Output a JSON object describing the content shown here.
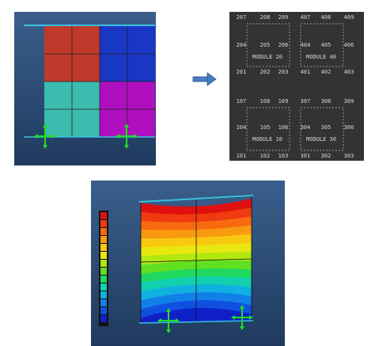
{
  "node_panel": {
    "top_rows": [
      [
        "207",
        "208",
        "209",
        "407",
        "408",
        "409"
      ],
      [
        "204",
        "205",
        "206",
        "404",
        "405",
        "406"
      ],
      [
        "201",
        "202",
        "203",
        "401",
        "402",
        "403"
      ]
    ],
    "top_modules": [
      "MODULE 20",
      "MODULE 40"
    ],
    "bottom_rows": [
      [
        "107",
        "108",
        "109",
        "307",
        "308",
        "309"
      ],
      [
        "104",
        "105",
        "106",
        "304",
        "305",
        "306"
      ],
      [
        "101",
        "102",
        "103",
        "301",
        "302",
        "303"
      ]
    ],
    "bottom_modules": [
      "MODULE 10",
      "MODULE 30"
    ]
  }
}
